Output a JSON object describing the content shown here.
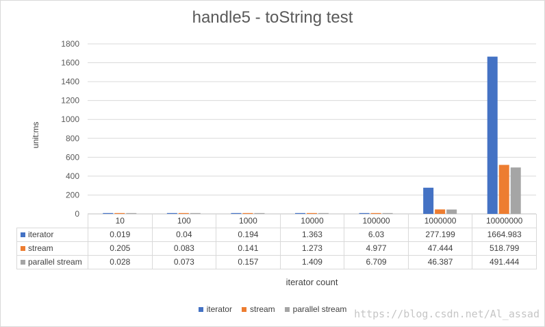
{
  "chart_data": {
    "type": "bar",
    "title": "handle5 - toString test",
    "xlabel": "iterator count",
    "ylabel": "unit:ms",
    "ylim": [
      0,
      1800
    ],
    "yticks": [
      0,
      200,
      400,
      600,
      800,
      1000,
      1200,
      1400,
      1600,
      1800
    ],
    "grid": true,
    "legend_position": "bottom",
    "categories": [
      "10",
      "100",
      "1000",
      "10000",
      "100000",
      "1000000",
      "10000000"
    ],
    "series": [
      {
        "name": "iterator",
        "color": "#4472c4",
        "values": [
          0.019,
          0.04,
          0.194,
          1.363,
          6.03,
          277.199,
          1664.983
        ],
        "labels": [
          "0.019",
          "0.04",
          "0.194",
          "1.363",
          "6.03",
          "277.199",
          "1664.983"
        ]
      },
      {
        "name": "stream",
        "color": "#ed7d31",
        "values": [
          0.205,
          0.083,
          0.141,
          1.273,
          4.977,
          47.444,
          518.799
        ],
        "labels": [
          "0.205",
          "0.083",
          "0.141",
          "1.273",
          "4.977",
          "47.444",
          "518.799"
        ]
      },
      {
        "name": "parallel stream",
        "color": "#a5a5a5",
        "values": [
          0.028,
          0.073,
          0.157,
          1.409,
          6.709,
          46.387,
          491.444
        ],
        "labels": [
          "0.028",
          "0.073",
          "0.157",
          "1.409",
          "6.709",
          "46.387",
          "491.444"
        ]
      }
    ]
  },
  "watermark": "https://blog.csdn.net/Al_assad"
}
